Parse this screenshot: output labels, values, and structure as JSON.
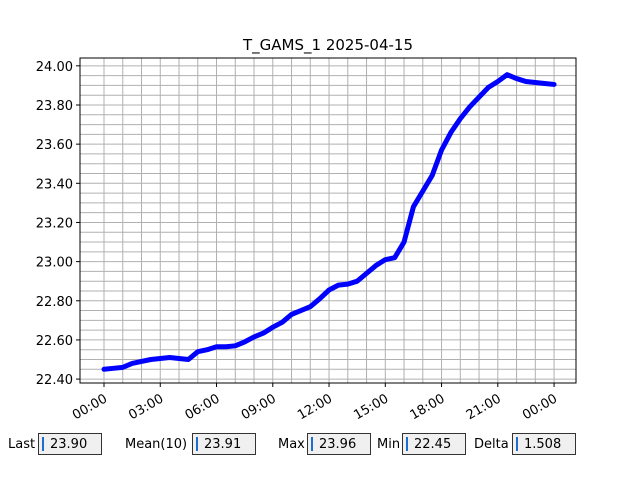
{
  "chart_data": {
    "type": "line",
    "title": "T_GAMS_1 2025-04-15",
    "x": [
      0,
      0.5,
      1,
      1.5,
      2,
      2.5,
      3,
      3.5,
      4,
      4.5,
      5,
      5.5,
      6,
      6.5,
      7,
      7.5,
      8,
      8.5,
      9,
      9.5,
      10,
      10.5,
      11,
      11.5,
      12,
      12.5,
      13,
      13.5,
      14,
      14.5,
      15,
      15.5,
      16,
      16.5,
      17,
      17.5,
      18,
      18.5,
      19,
      19.5,
      20,
      20.5,
      21,
      21.5,
      22,
      22.5,
      23,
      23.5,
      24
    ],
    "series": [
      {
        "color": "#0000ff",
        "values": [
          22.45,
          22.455,
          22.46,
          22.48,
          22.49,
          22.5,
          22.505,
          22.51,
          22.505,
          22.5,
          22.54,
          22.55,
          22.565,
          22.565,
          22.57,
          22.59,
          22.615,
          22.635,
          22.665,
          22.69,
          22.73,
          22.75,
          22.77,
          22.81,
          22.855,
          22.88,
          22.885,
          22.9,
          22.94,
          22.98,
          23.01,
          23.02,
          23.1,
          23.28,
          23.36,
          23.44,
          23.57,
          23.66,
          23.73,
          23.79,
          23.84,
          23.89,
          23.92,
          23.955,
          23.935,
          23.92,
          23.915,
          23.91,
          23.905
        ]
      }
    ],
    "xlim": [
      -1.28,
      25.17
    ],
    "xticks": [
      {
        "value": 0,
        "label": "00:00"
      },
      {
        "value": 3,
        "label": "03:00"
      },
      {
        "value": 6,
        "label": "06:00"
      },
      {
        "value": 9,
        "label": "09:00"
      },
      {
        "value": 12,
        "label": "12:00"
      },
      {
        "value": 15,
        "label": "15:00"
      },
      {
        "value": 18,
        "label": "18:00"
      },
      {
        "value": 21,
        "label": "21:00"
      },
      {
        "value": 24,
        "label": "00:00"
      }
    ],
    "ylim": [
      22.38,
      24.04
    ],
    "yticks": [
      {
        "value": 22.4,
        "label": "22.40"
      },
      {
        "value": 22.6,
        "label": "22.60"
      },
      {
        "value": 22.8,
        "label": "22.80"
      },
      {
        "value": 23.0,
        "label": "23.00"
      },
      {
        "value": 23.2,
        "label": "23.20"
      },
      {
        "value": 23.4,
        "label": "23.40"
      },
      {
        "value": 23.6,
        "label": "23.60"
      },
      {
        "value": 23.8,
        "label": "23.80"
      },
      {
        "value": 24.0,
        "label": "24.00"
      }
    ],
    "grid": true
  },
  "stats": [
    {
      "label": "Last",
      "value": "23.90"
    },
    {
      "label": "Mean(10)",
      "value": "23.91"
    },
    {
      "label": "Max",
      "value": "23.96"
    },
    {
      "label": "Min",
      "value": "22.45"
    },
    {
      "label": "Delta",
      "value": "1.508"
    }
  ]
}
